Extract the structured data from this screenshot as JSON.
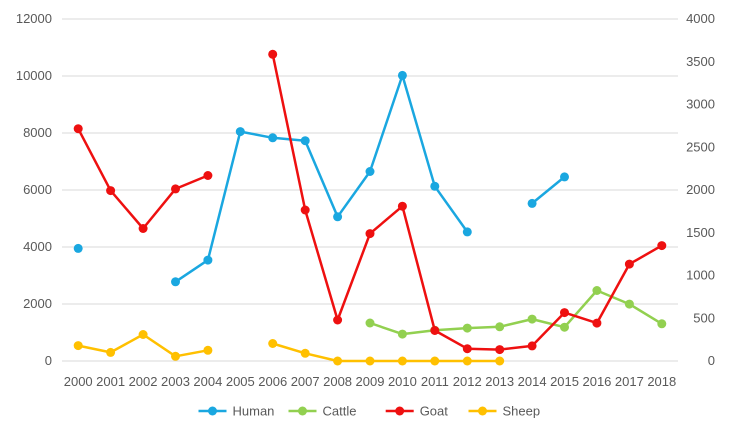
{
  "chart_data": {
    "type": "line",
    "title": "",
    "xlabel": "",
    "ylabel": "",
    "y2label": "",
    "categories": [
      "2000",
      "2001",
      "2002",
      "2003",
      "2004",
      "2005",
      "2006",
      "2007",
      "2008",
      "2009",
      "2010",
      "2011",
      "2012",
      "2013",
      "2014",
      "2015",
      "2016",
      "2017",
      "2018"
    ],
    "y_left": {
      "min": 0,
      "max": 12000,
      "ticks": [
        "0",
        "2000",
        "4000",
        "6000",
        "8000",
        "10000",
        "12000"
      ]
    },
    "y_right": {
      "min": 0,
      "max": 4000,
      "ticks": [
        "0",
        "500",
        "1000",
        "1500",
        "2000",
        "2500",
        "3000",
        "3500",
        "4000"
      ]
    },
    "grid": true,
    "legend_position": "bottom",
    "series": [
      {
        "name": "Human",
        "color": "#1aa7e0",
        "axis": "left",
        "values": [
          3950,
          null,
          null,
          2780,
          3540,
          8050,
          7830,
          7730,
          5060,
          6650,
          10020,
          6130,
          4530,
          null,
          5530,
          6460,
          null,
          null,
          null
        ]
      },
      {
        "name": "Cattle",
        "color": "#92d050",
        "axis": "right",
        "values": [
          null,
          null,
          null,
          null,
          null,
          null,
          null,
          null,
          null,
          445,
          315,
          360,
          385,
          400,
          490,
          395,
          825,
          665,
          435
        ]
      },
      {
        "name": "Goat",
        "color": "#ee1010",
        "axis": "left",
        "values": [
          8150,
          5980,
          4650,
          6040,
          6510,
          null,
          10760,
          5300,
          1440,
          4470,
          5430,
          1070,
          430,
          400,
          530,
          1700,
          1330,
          3400,
          4050
        ]
      },
      {
        "name": "Sheep",
        "color": "#ffc000",
        "axis": "right",
        "values": [
          180,
          100,
          310,
          55,
          125,
          null,
          205,
          90,
          0,
          0,
          0,
          0,
          0,
          0,
          null,
          null,
          null,
          null,
          null
        ]
      }
    ]
  }
}
